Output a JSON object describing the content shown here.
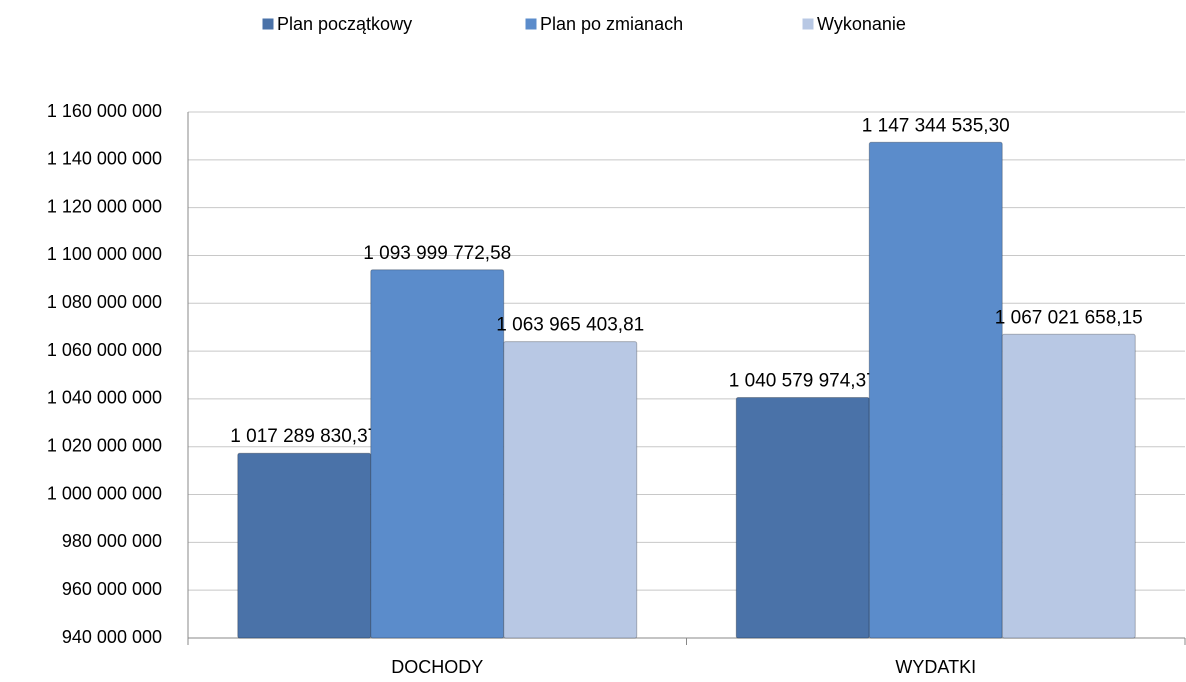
{
  "chart_data": {
    "type": "bar",
    "categories": [
      "DOCHODY",
      "WYDATKI"
    ],
    "series": [
      {
        "name": "Plan początkowy",
        "color": "#4a72a8",
        "values": [
          1017289830.37,
          1040579974.37
        ],
        "value_labels": [
          "1 017 289 830,37",
          "1 040 579 974,37"
        ]
      },
      {
        "name": "Plan po zmianach",
        "color": "#5b8ccb",
        "values": [
          1093999772.58,
          1147344535.3
        ],
        "value_labels": [
          "1 093 999 772,58",
          "1 147 344 535,30"
        ]
      },
      {
        "name": "Wykonanie",
        "color": "#b8c8e4",
        "values": [
          1063965403.81,
          1067021658.15
        ],
        "value_labels": [
          "1 063 965 403,81",
          "1 067 021 658,15"
        ]
      }
    ],
    "ylim": [
      940000000,
      1160000000
    ],
    "yticks": [
      {
        "value": 940000000,
        "label": "940 000 000"
      },
      {
        "value": 960000000,
        "label": "960 000 000"
      },
      {
        "value": 980000000,
        "label": "980 000 000"
      },
      {
        "value": 1000000000,
        "label": "1 000 000 000"
      },
      {
        "value": 1020000000,
        "label": "1 020 000 000"
      },
      {
        "value": 1040000000,
        "label": "1 040 000 000"
      },
      {
        "value": 1060000000,
        "label": "1 060 000 000"
      },
      {
        "value": 1080000000,
        "label": "1 080 000 000"
      },
      {
        "value": 1100000000,
        "label": "1 100 000 000"
      },
      {
        "value": 1120000000,
        "label": "1 120 000 000"
      },
      {
        "value": 1140000000,
        "label": "1 140 000 000"
      },
      {
        "value": 1160000000,
        "label": "1 160 000 000"
      }
    ],
    "grid": true,
    "legend": "top"
  }
}
